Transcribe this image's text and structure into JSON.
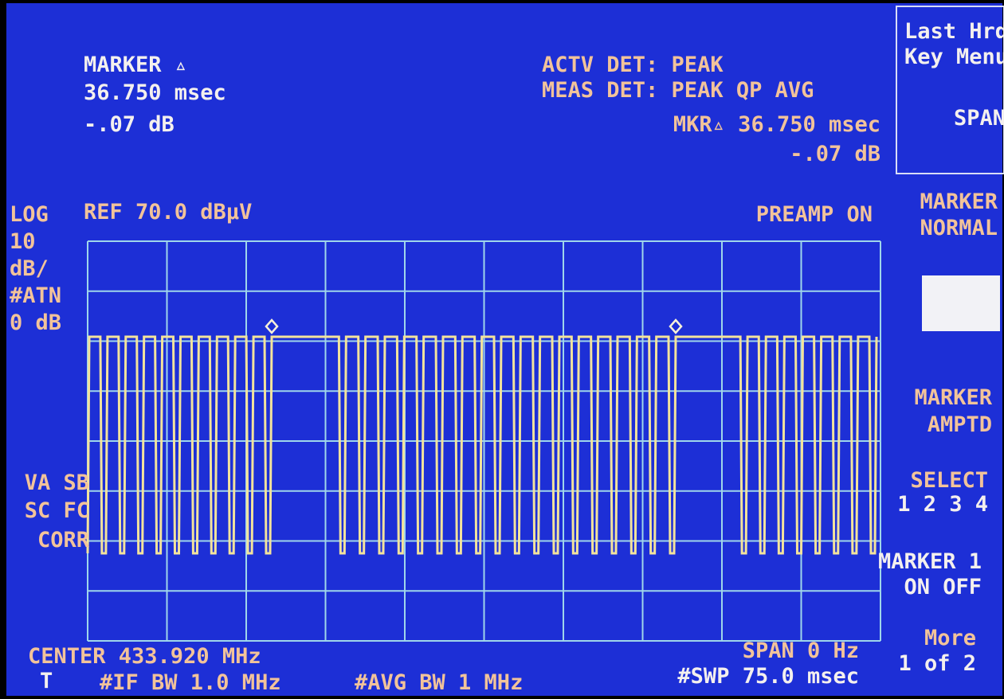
{
  "marker_readout": {
    "label": "MARKER ▵",
    "time": "36.750 msec",
    "level": "-.07 dB"
  },
  "detector": {
    "active": "ACTV DET: PEAK",
    "measure": "MEAS DET: PEAK QP AVG",
    "marker_delta": "MKR▵ 36.750 msec",
    "marker_level": "-.07 dB"
  },
  "menu_box": {
    "line1": "Last Hrd",
    "line2": "Key Menu",
    "line3": "SPAN"
  },
  "scale": {
    "mode": "LOG",
    "per_div": "10",
    "unit": "dB/",
    "atten": "#ATN",
    "atten_value": "0 dB",
    "reference": "REF 70.0 dBµV",
    "preamp": "PREAMP ON"
  },
  "status": {
    "line1": "VA SB",
    "line2": "SC FC",
    "line3": "CORR"
  },
  "softkeys": {
    "marker_normal": [
      "MARKER",
      "NORMAL"
    ],
    "marker_amptd": [
      "MARKER",
      "AMPTD"
    ],
    "select": "SELECT",
    "select_options": "1 2 3 4",
    "marker1": "MARKER 1",
    "on_off": "ON OFF",
    "more": "More",
    "page": "1 of 2"
  },
  "footer": {
    "center": "CENTER 433.920 MHz",
    "trigger": "T",
    "if_bw": "#IF BW 1.0 MHz",
    "avg_bw": "#AVG BW 1 MHz",
    "span": "SPAN 0 Hz",
    "sweep": "#SWP 75.0 msec"
  }
}
